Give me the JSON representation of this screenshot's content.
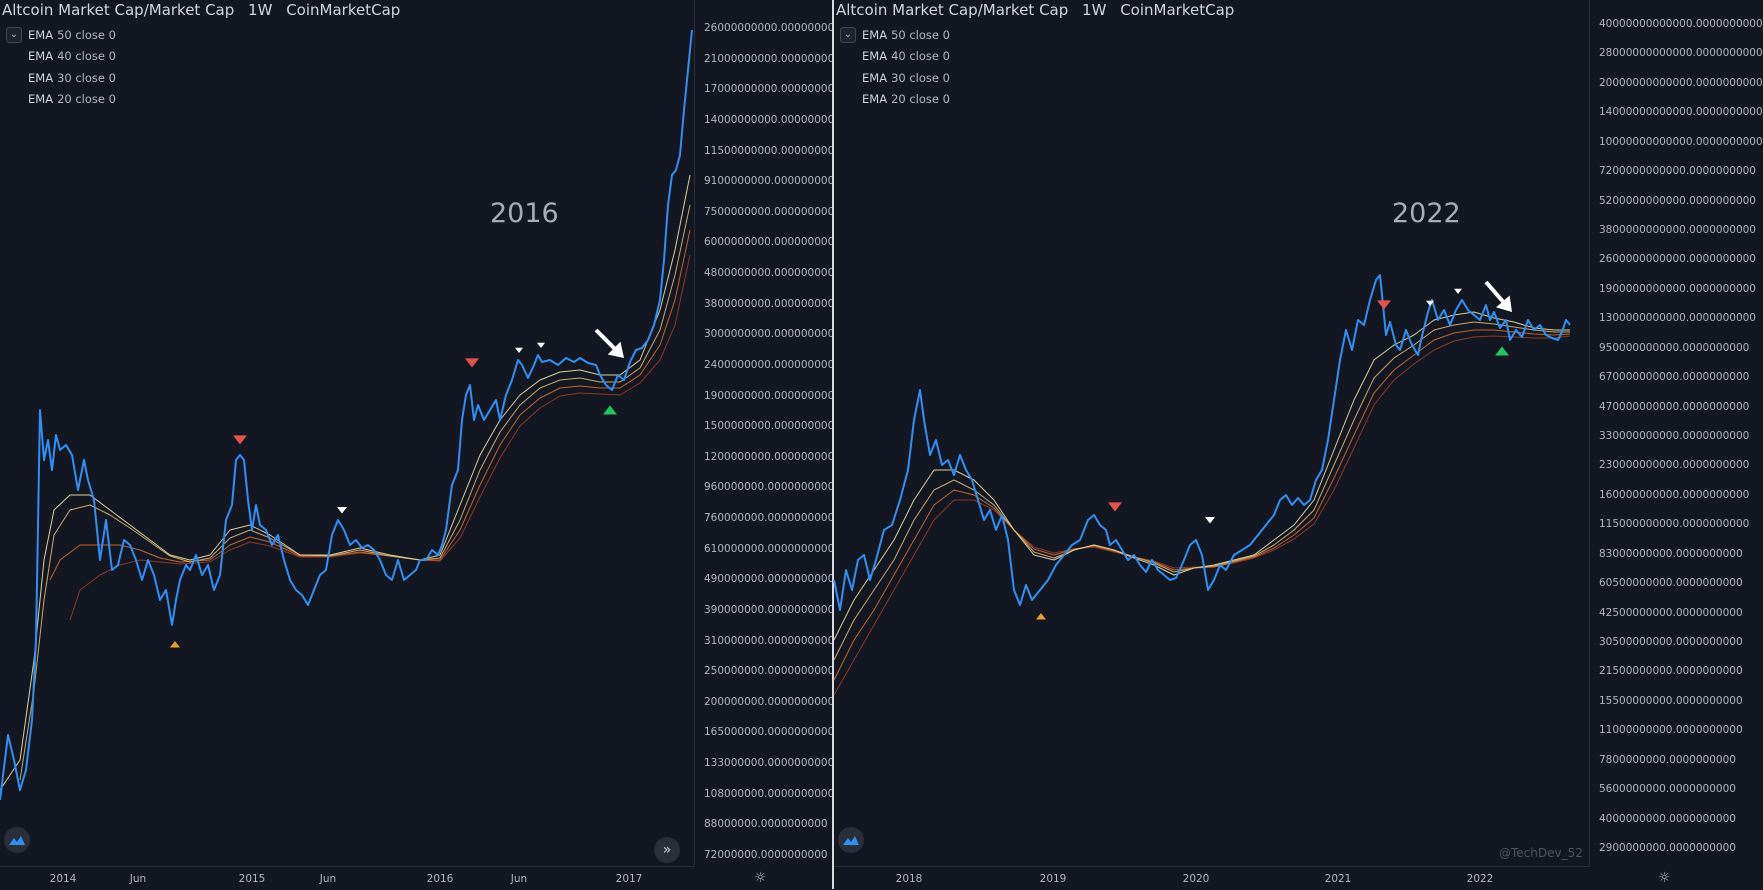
{
  "colors": {
    "background": "#131722",
    "price_line": "#2f8ff5",
    "ema50": "#8a3a22",
    "ema40": "#c0652e",
    "ema30": "#c9a86a",
    "ema20": "#d8cf9a",
    "marker_red": "#e0534f",
    "marker_white": "#ffffff",
    "marker_orange": "#e0a030",
    "marker_green": "#22c55e"
  },
  "left_panel": {
    "title": {
      "symbol": "Altcoin Market Cap/Market Cap",
      "interval": "1W",
      "source": "CoinMarketCap"
    },
    "legend": [
      {
        "name": "EMA",
        "params": "50 close 0",
        "icon": "chevron-down-icon"
      },
      {
        "name": "EMA",
        "params": "40 close 0"
      },
      {
        "name": "EMA",
        "params": "30 close 0"
      },
      {
        "name": "EMA",
        "params": "20 close 0"
      }
    ],
    "annotation": "2016",
    "price_axis": [
      "26000000000.0000000000",
      "21000000000.0000000000",
      "17000000000.0000000000",
      "14000000000.0000000000",
      "11500000000.0000000000",
      "9100000000.0000000000",
      "7500000000.0000000000",
      "6000000000.0000000000",
      "4800000000.0000000000",
      "3800000000.0000000000",
      "3000000000.0000000000",
      "2400000000.0000000000",
      "1900000000.0000000000",
      "1500000000.0000000000",
      "1200000000.0000000000",
      "960000000.0000000000",
      "760000000.0000000000",
      "610000000.0000000000",
      "490000000.0000000000",
      "390000000.0000000000",
      "310000000.0000000000",
      "250000000.0000000000",
      "200000000.0000000000",
      "165000000.0000000000",
      "133000000.0000000000",
      "108000000.0000000000",
      "88000000.0000000000",
      "72000000.0000000000"
    ],
    "time_axis": [
      "2014",
      "Jun",
      "2015",
      "Jun",
      "2016",
      "Jun",
      "2017"
    ],
    "nav_icon": "double-chevron-right-icon",
    "logo_icon": "tradingview-logo-icon",
    "settings_icon": "gear-icon"
  },
  "right_panel": {
    "title": {
      "symbol": "Altcoin Market Cap/Market Cap",
      "interval": "1W",
      "source": "CoinMarketCap"
    },
    "legend": [
      {
        "name": "EMA",
        "params": "50 close 0",
        "icon": "chevron-down-icon"
      },
      {
        "name": "EMA",
        "params": "40 close 0"
      },
      {
        "name": "EMA",
        "params": "30 close 0"
      },
      {
        "name": "EMA",
        "params": "20 close 0"
      }
    ],
    "annotation": "2022",
    "watermark": "@TechDev_52",
    "price_axis": [
      "40000000000000.0000000000",
      "28000000000000.0000000000",
      "20000000000000.0000000000",
      "14000000000000.0000000000",
      "10000000000000.0000000000",
      "7200000000000.0000000000",
      "5200000000000.0000000000",
      "3800000000000.0000000000",
      "2600000000000.0000000000",
      "1900000000000.0000000000",
      "1300000000000.0000000000",
      "950000000000.0000000000",
      "670000000000.0000000000",
      "470000000000.0000000000",
      "330000000000.0000000000",
      "230000000000.0000000000",
      "160000000000.0000000000",
      "115000000000.0000000000",
      "83000000000.0000000000",
      "60500000000.0000000000",
      "42500000000.0000000000",
      "30500000000.0000000000",
      "21500000000.0000000000",
      "15500000000.0000000000",
      "11000000000.0000000000",
      "7800000000.0000000000",
      "5600000000.0000000000",
      "4000000000.0000000000",
      "2900000000.0000000000"
    ],
    "time_axis": [
      "2018",
      "2019",
      "2020",
      "2021",
      "2022"
    ],
    "logo_icon": "tradingview-logo-icon",
    "settings_icon": "gear-icon"
  }
}
